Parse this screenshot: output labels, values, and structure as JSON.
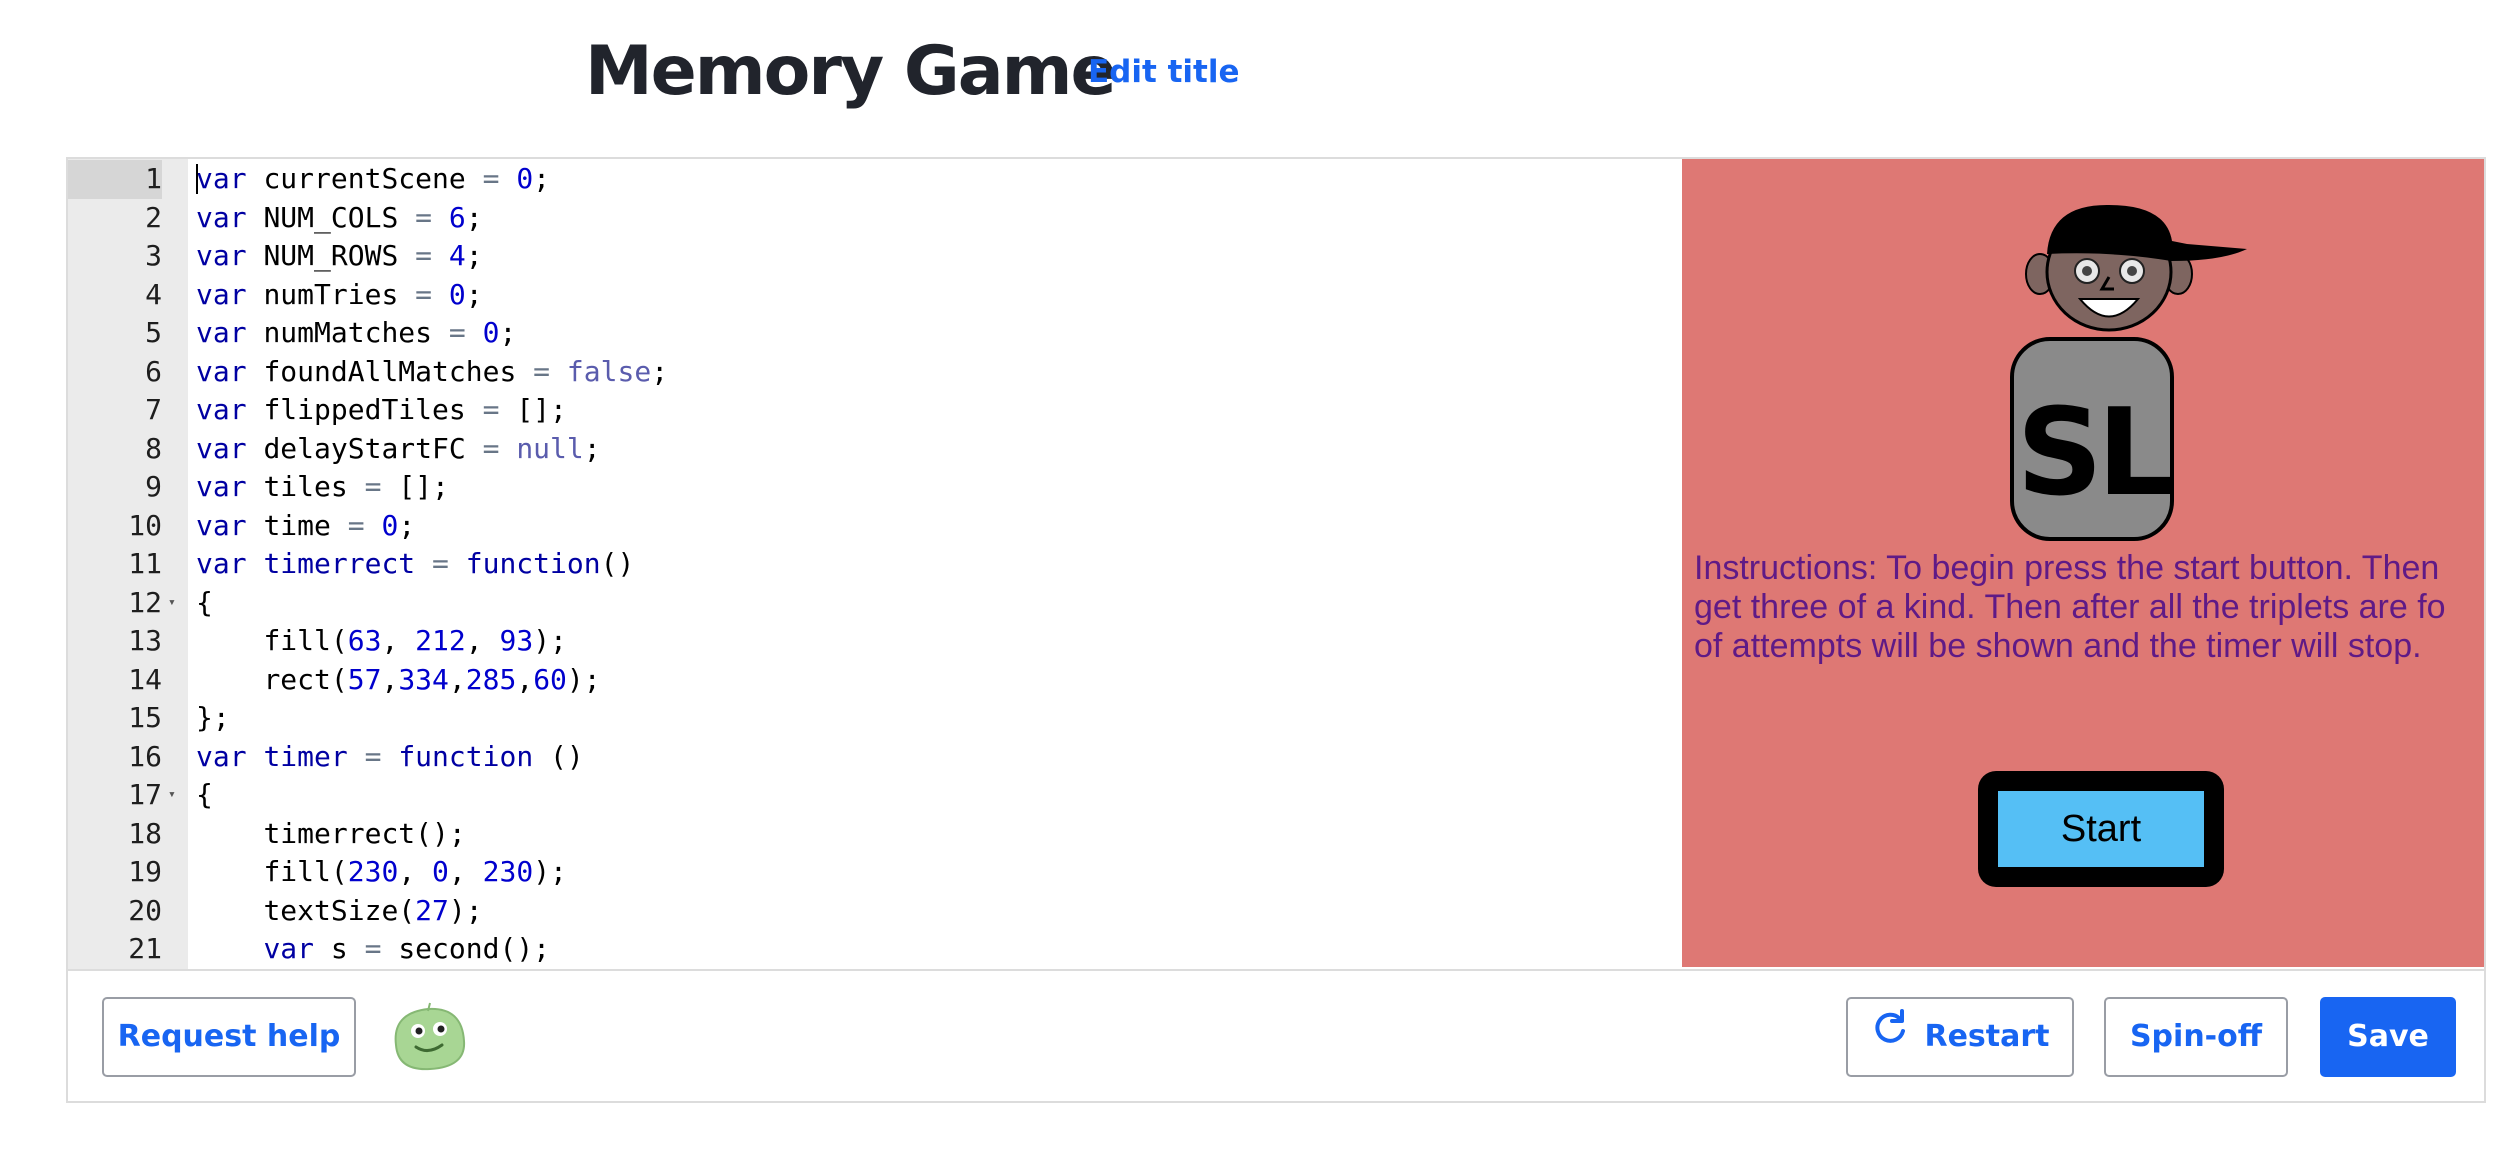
{
  "header": {
    "title": "Memory Game",
    "edit_title_label": "Edit title"
  },
  "editor": {
    "lines": [
      {
        "n": "1",
        "tokens": [
          [
            "kw",
            "var"
          ],
          [
            "ws",
            " "
          ],
          [
            "id",
            "currentScene"
          ],
          [
            "ws",
            " "
          ],
          [
            "op",
            "="
          ],
          [
            "ws",
            " "
          ],
          [
            "num",
            "0"
          ],
          [
            "p",
            ";"
          ]
        ]
      },
      {
        "n": "2",
        "tokens": [
          [
            "kw",
            "var"
          ],
          [
            "ws",
            " "
          ],
          [
            "id",
            "NUM_COLS"
          ],
          [
            "ws",
            " "
          ],
          [
            "op",
            "="
          ],
          [
            "ws",
            " "
          ],
          [
            "num",
            "6"
          ],
          [
            "p",
            ";"
          ]
        ]
      },
      {
        "n": "3",
        "tokens": [
          [
            "kw",
            "var"
          ],
          [
            "ws",
            " "
          ],
          [
            "id",
            "NUM_ROWS"
          ],
          [
            "ws",
            " "
          ],
          [
            "op",
            "="
          ],
          [
            "ws",
            " "
          ],
          [
            "num",
            "4"
          ],
          [
            "p",
            ";"
          ]
        ]
      },
      {
        "n": "4",
        "tokens": [
          [
            "kw",
            "var"
          ],
          [
            "ws",
            " "
          ],
          [
            "id",
            "numTries"
          ],
          [
            "ws",
            " "
          ],
          [
            "op",
            "="
          ],
          [
            "ws",
            " "
          ],
          [
            "num",
            "0"
          ],
          [
            "p",
            ";"
          ]
        ]
      },
      {
        "n": "5",
        "tokens": [
          [
            "kw",
            "var"
          ],
          [
            "ws",
            " "
          ],
          [
            "id",
            "numMatches"
          ],
          [
            "ws",
            " "
          ],
          [
            "op",
            "="
          ],
          [
            "ws",
            " "
          ],
          [
            "num",
            "0"
          ],
          [
            "p",
            ";"
          ]
        ]
      },
      {
        "n": "6",
        "tokens": [
          [
            "kw",
            "var"
          ],
          [
            "ws",
            " "
          ],
          [
            "id",
            "foundAllMatches"
          ],
          [
            "ws",
            " "
          ],
          [
            "op",
            "="
          ],
          [
            "ws",
            " "
          ],
          [
            "bool",
            "false"
          ],
          [
            "p",
            ";"
          ]
        ]
      },
      {
        "n": "7",
        "tokens": [
          [
            "kw",
            "var"
          ],
          [
            "ws",
            " "
          ],
          [
            "id",
            "flippedTiles"
          ],
          [
            "ws",
            " "
          ],
          [
            "op",
            "="
          ],
          [
            "ws",
            " "
          ],
          [
            "p",
            "[];"
          ]
        ]
      },
      {
        "n": "8",
        "tokens": [
          [
            "kw",
            "var"
          ],
          [
            "ws",
            " "
          ],
          [
            "id",
            "delayStartFC"
          ],
          [
            "ws",
            " "
          ],
          [
            "op",
            "="
          ],
          [
            "ws",
            " "
          ],
          [
            "bool",
            "null"
          ],
          [
            "p",
            ";"
          ]
        ]
      },
      {
        "n": "9",
        "tokens": [
          [
            "kw",
            "var"
          ],
          [
            "ws",
            " "
          ],
          [
            "id",
            "tiles"
          ],
          [
            "ws",
            " "
          ],
          [
            "op",
            "="
          ],
          [
            "ws",
            " "
          ],
          [
            "p",
            "[];"
          ]
        ]
      },
      {
        "n": "10",
        "tokens": [
          [
            "kw",
            "var"
          ],
          [
            "ws",
            " "
          ],
          [
            "id",
            "time"
          ],
          [
            "ws",
            " "
          ],
          [
            "op",
            "="
          ],
          [
            "ws",
            " "
          ],
          [
            "num",
            "0"
          ],
          [
            "p",
            ";"
          ]
        ]
      },
      {
        "n": "11",
        "tokens": [
          [
            "kw",
            "var"
          ],
          [
            "ws",
            " "
          ],
          [
            "fn",
            "timerrect"
          ],
          [
            "ws",
            " "
          ],
          [
            "op",
            "="
          ],
          [
            "ws",
            " "
          ],
          [
            "kw",
            "function"
          ],
          [
            "p",
            "()"
          ]
        ]
      },
      {
        "n": "12",
        "fold": true,
        "tokens": [
          [
            "p",
            "{"
          ]
        ]
      },
      {
        "n": "13",
        "tokens": [
          [
            "ws",
            "    "
          ],
          [
            "id",
            "fill("
          ],
          [
            "num",
            "63"
          ],
          [
            "p",
            ", "
          ],
          [
            "num",
            "212"
          ],
          [
            "p",
            ", "
          ],
          [
            "num",
            "93"
          ],
          [
            "p",
            ");"
          ]
        ]
      },
      {
        "n": "14",
        "tokens": [
          [
            "ws",
            "    "
          ],
          [
            "id",
            "rect("
          ],
          [
            "num",
            "57"
          ],
          [
            "p",
            ","
          ],
          [
            "num",
            "334"
          ],
          [
            "p",
            ","
          ],
          [
            "num",
            "285"
          ],
          [
            "p",
            ","
          ],
          [
            "num",
            "60"
          ],
          [
            "p",
            ");"
          ]
        ]
      },
      {
        "n": "15",
        "tokens": [
          [
            "p",
            "};"
          ]
        ]
      },
      {
        "n": "16",
        "tokens": [
          [
            "kw",
            "var"
          ],
          [
            "ws",
            " "
          ],
          [
            "fn",
            "timer"
          ],
          [
            "ws",
            " "
          ],
          [
            "op",
            "="
          ],
          [
            "ws",
            " "
          ],
          [
            "kw",
            "function"
          ],
          [
            "ws",
            " "
          ],
          [
            "p",
            "()"
          ]
        ]
      },
      {
        "n": "17",
        "fold": true,
        "tokens": [
          [
            "p",
            "{"
          ]
        ]
      },
      {
        "n": "18",
        "tokens": [
          [
            "ws",
            "    "
          ],
          [
            "id",
            "timerrect();"
          ]
        ]
      },
      {
        "n": "19",
        "tokens": [
          [
            "ws",
            "    "
          ],
          [
            "id",
            "fill("
          ],
          [
            "num",
            "230"
          ],
          [
            "p",
            ", "
          ],
          [
            "num",
            "0"
          ],
          [
            "p",
            ", "
          ],
          [
            "num",
            "230"
          ],
          [
            "p",
            ");"
          ]
        ]
      },
      {
        "n": "20",
        "tokens": [
          [
            "ws",
            "    "
          ],
          [
            "id",
            "textSize("
          ],
          [
            "num",
            "27"
          ],
          [
            "p",
            ");"
          ]
        ]
      },
      {
        "n": "21",
        "tokens": [
          [
            "ws",
            "    "
          ],
          [
            "kw",
            "var"
          ],
          [
            "ws",
            " "
          ],
          [
            "id",
            "s"
          ],
          [
            "ws",
            " "
          ],
          [
            "op",
            "="
          ],
          [
            "ws",
            " "
          ],
          [
            "id",
            "second();"
          ]
        ]
      }
    ]
  },
  "canvas": {
    "background": "#de7874",
    "logo_letters": "SL",
    "instructions": [
      "Instructions: To begin press the start button. Then",
      "get three of a kind. Then after all the triplets are fo",
      "of attempts will be shown and the timer will stop."
    ],
    "start_label": "Start"
  },
  "toolbar": {
    "request_help_label": "Request help",
    "restart_label": "Restart",
    "spinoff_label": "Spin-off",
    "save_label": "Save"
  },
  "colors": {
    "accent": "#1865f2",
    "canvas_bg": "#de7874",
    "start_button": "#55bff5",
    "instructions_text": "#5f1a86"
  },
  "icons": {
    "restart": "refresh-icon",
    "avatar": "green-blob-avatar"
  }
}
